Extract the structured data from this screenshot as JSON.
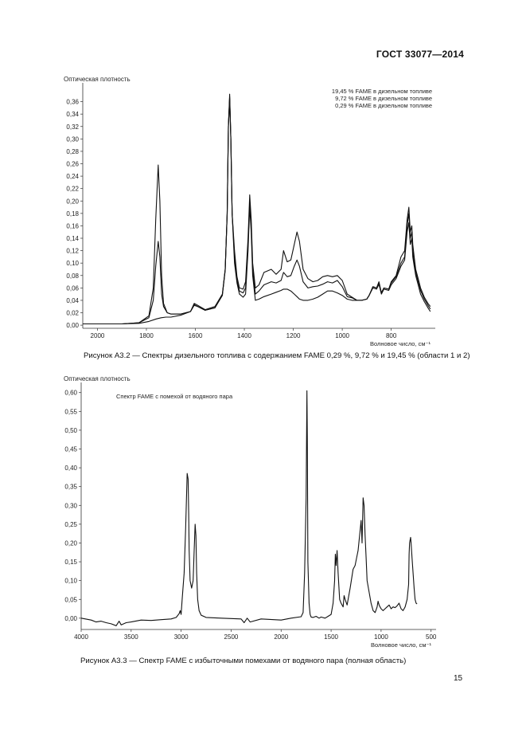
{
  "header": {
    "doc_code": "ГОСТ 33077—2014"
  },
  "page_number": "15",
  "chart_data": [
    {
      "type": "line",
      "ylabel": "Оптическая плотность",
      "xlabel": "Волновое число, см⁻¹",
      "x_reversed": true,
      "xlim": [
        2060,
        620
      ],
      "ylim": [
        -0.005,
        0.38
      ],
      "x_ticks": [
        2000,
        1800,
        1600,
        1400,
        1200,
        1000,
        800
      ],
      "y_ticks": [
        0.0,
        0.02,
        0.04,
        0.06,
        0.08,
        0.1,
        0.12,
        0.14,
        0.16,
        0.18,
        0.2,
        0.22,
        0.24,
        0.26,
        0.28,
        0.3,
        0.32,
        0.34,
        0.36
      ],
      "legend_position": "top-right",
      "series": [
        {
          "name": "19,45 % FAME в дизельном топливе",
          "x": [
            2060,
            1900,
            1830,
            1790,
            1772,
            1762,
            1752,
            1745,
            1738,
            1730,
            1715,
            1700,
            1660,
            1620,
            1605,
            1590,
            1560,
            1520,
            1490,
            1478,
            1470,
            1465,
            1460,
            1455,
            1450,
            1440,
            1430,
            1420,
            1405,
            1395,
            1385,
            1378,
            1372,
            1366,
            1355,
            1340,
            1320,
            1290,
            1270,
            1250,
            1240,
            1225,
            1210,
            1196,
            1185,
            1175,
            1160,
            1140,
            1120,
            1100,
            1080,
            1060,
            1040,
            1020,
            1000,
            980,
            960,
            940,
            920,
            900,
            890,
            875,
            860,
            850,
            840,
            830,
            810,
            800,
            780,
            760,
            745,
            735,
            728,
            722,
            716,
            712,
            706,
            700,
            690,
            680,
            665,
            650,
            640
          ],
          "y": [
            0.002,
            0.002,
            0.004,
            0.015,
            0.06,
            0.17,
            0.258,
            0.2,
            0.08,
            0.035,
            0.02,
            0.018,
            0.018,
            0.022,
            0.035,
            0.032,
            0.025,
            0.03,
            0.05,
            0.09,
            0.18,
            0.32,
            0.372,
            0.3,
            0.18,
            0.12,
            0.078,
            0.06,
            0.058,
            0.07,
            0.14,
            0.21,
            0.17,
            0.1,
            0.06,
            0.065,
            0.085,
            0.09,
            0.082,
            0.09,
            0.12,
            0.102,
            0.105,
            0.13,
            0.15,
            0.135,
            0.09,
            0.075,
            0.07,
            0.072,
            0.078,
            0.08,
            0.078,
            0.08,
            0.072,
            0.05,
            0.045,
            0.04,
            0.04,
            0.042,
            0.048,
            0.062,
            0.06,
            0.07,
            0.052,
            0.06,
            0.058,
            0.07,
            0.08,
            0.11,
            0.12,
            0.17,
            0.19,
            0.15,
            0.16,
            0.13,
            0.11,
            0.09,
            0.075,
            0.06,
            0.045,
            0.035,
            0.03
          ]
        },
        {
          "name": "9,72 % FAME в дизельном топливе",
          "x": [
            2060,
            1900,
            1830,
            1790,
            1772,
            1762,
            1752,
            1745,
            1738,
            1730,
            1715,
            1700,
            1660,
            1620,
            1605,
            1590,
            1560,
            1520,
            1490,
            1478,
            1470,
            1465,
            1460,
            1455,
            1450,
            1440,
            1430,
            1420,
            1405,
            1395,
            1385,
            1378,
            1372,
            1366,
            1355,
            1340,
            1320,
            1290,
            1270,
            1250,
            1240,
            1225,
            1210,
            1196,
            1185,
            1175,
            1160,
            1140,
            1120,
            1100,
            1080,
            1060,
            1040,
            1020,
            1000,
            980,
            960,
            940,
            920,
            900,
            890,
            875,
            860,
            850,
            840,
            830,
            810,
            800,
            780,
            760,
            745,
            735,
            728,
            722,
            716,
            712,
            706,
            700,
            690,
            680,
            665,
            650,
            640
          ],
          "y": [
            0.002,
            0.002,
            0.004,
            0.012,
            0.04,
            0.095,
            0.135,
            0.11,
            0.05,
            0.03,
            0.02,
            0.018,
            0.018,
            0.022,
            0.033,
            0.03,
            0.024,
            0.028,
            0.048,
            0.088,
            0.18,
            0.32,
            0.365,
            0.3,
            0.18,
            0.11,
            0.072,
            0.055,
            0.052,
            0.06,
            0.13,
            0.2,
            0.16,
            0.09,
            0.05,
            0.055,
            0.065,
            0.07,
            0.068,
            0.072,
            0.085,
            0.078,
            0.08,
            0.095,
            0.105,
            0.095,
            0.07,
            0.06,
            0.062,
            0.063,
            0.066,
            0.07,
            0.068,
            0.072,
            0.062,
            0.046,
            0.044,
            0.04,
            0.04,
            0.042,
            0.048,
            0.062,
            0.06,
            0.068,
            0.052,
            0.06,
            0.058,
            0.068,
            0.078,
            0.1,
            0.11,
            0.16,
            0.18,
            0.14,
            0.15,
            0.12,
            0.1,
            0.085,
            0.07,
            0.056,
            0.042,
            0.032,
            0.026
          ]
        },
        {
          "name": "0,29 % FAME в дизельном топливе",
          "x": [
            2060,
            1900,
            1830,
            1790,
            1760,
            1740,
            1720,
            1700,
            1660,
            1620,
            1605,
            1590,
            1560,
            1520,
            1490,
            1478,
            1470,
            1465,
            1460,
            1455,
            1450,
            1440,
            1430,
            1420,
            1405,
            1395,
            1385,
            1378,
            1372,
            1366,
            1355,
            1340,
            1320,
            1290,
            1270,
            1250,
            1240,
            1225,
            1210,
            1196,
            1185,
            1175,
            1160,
            1140,
            1120,
            1100,
            1080,
            1060,
            1040,
            1020,
            1000,
            980,
            960,
            940,
            920,
            900,
            890,
            875,
            860,
            850,
            840,
            830,
            810,
            800,
            780,
            760,
            745,
            735,
            728,
            722,
            716,
            712,
            706,
            700,
            690,
            680,
            665,
            650,
            640
          ],
          "y": [
            0.002,
            0.002,
            0.003,
            0.006,
            0.01,
            0.012,
            0.013,
            0.013,
            0.016,
            0.022,
            0.032,
            0.03,
            0.024,
            0.028,
            0.048,
            0.09,
            0.18,
            0.32,
            0.368,
            0.3,
            0.18,
            0.1,
            0.068,
            0.05,
            0.045,
            0.05,
            0.12,
            0.19,
            0.15,
            0.08,
            0.04,
            0.042,
            0.046,
            0.05,
            0.053,
            0.056,
            0.058,
            0.058,
            0.055,
            0.05,
            0.046,
            0.042,
            0.04,
            0.04,
            0.042,
            0.045,
            0.05,
            0.055,
            0.055,
            0.052,
            0.048,
            0.042,
            0.04,
            0.04,
            0.04,
            0.042,
            0.048,
            0.06,
            0.058,
            0.066,
            0.05,
            0.058,
            0.056,
            0.065,
            0.075,
            0.095,
            0.105,
            0.15,
            0.165,
            0.13,
            0.14,
            0.11,
            0.095,
            0.08,
            0.065,
            0.05,
            0.038,
            0.028,
            0.022
          ]
        }
      ]
    },
    {
      "type": "line",
      "ylabel": "Оптическая плотность",
      "xlabel": "Волновое число, см⁻¹",
      "x_reversed": true,
      "xlim": [
        4000,
        450
      ],
      "ylim": [
        -0.03,
        0.61
      ],
      "x_ticks": [
        4000,
        3500,
        3000,
        2500,
        2000,
        1500,
        1000,
        500
      ],
      "y_ticks": [
        0.0,
        0.05,
        0.1,
        0.15,
        0.2,
        0.25,
        0.3,
        0.35,
        0.4,
        0.45,
        0.5,
        0.55,
        0.6
      ],
      "legend_position": "top-left",
      "series": [
        {
          "name": "Спектр FAME с помехой от водяного пара",
          "x": [
            4000,
            3900,
            3850,
            3800,
            3750,
            3700,
            3650,
            3620,
            3600,
            3550,
            3500,
            3400,
            3300,
            3200,
            3100,
            3050,
            3020,
            3010,
            3000,
            2990,
            2970,
            2955,
            2940,
            2930,
            2925,
            2920,
            2910,
            2895,
            2880,
            2870,
            2860,
            2852,
            2845,
            2835,
            2820,
            2800,
            2750,
            2600,
            2400,
            2370,
            2340,
            2310,
            2200,
            2000,
            1900,
            1800,
            1780,
            1765,
            1750,
            1742,
            1738,
            1732,
            1720,
            1710,
            1700,
            1680,
            1650,
            1620,
            1600,
            1560,
            1530,
            1500,
            1480,
            1465,
            1458,
            1450,
            1440,
            1430,
            1415,
            1400,
            1380,
            1370,
            1360,
            1340,
            1310,
            1280,
            1260,
            1245,
            1230,
            1215,
            1200,
            1190,
            1180,
            1170,
            1160,
            1150,
            1140,
            1120,
            1100,
            1080,
            1060,
            1040,
            1030,
            1020,
            1010,
            1000,
            980,
            960,
            940,
            920,
            900,
            880,
            860,
            840,
            820,
            800,
            780,
            760,
            740,
            725,
            720,
            715,
            705,
            700,
            690,
            680,
            670,
            660,
            650,
            640
          ],
          "y": [
            0.0,
            -0.005,
            -0.01,
            -0.008,
            -0.012,
            -0.015,
            -0.02,
            -0.008,
            -0.018,
            -0.012,
            -0.01,
            -0.005,
            -0.006,
            -0.004,
            -0.002,
            0.002,
            0.012,
            0.02,
            0.01,
            0.05,
            0.12,
            0.24,
            0.385,
            0.37,
            0.28,
            0.18,
            0.1,
            0.08,
            0.1,
            0.18,
            0.25,
            0.22,
            0.12,
            0.05,
            0.02,
            0.008,
            0.002,
            0.0,
            -0.002,
            -0.012,
            0.0,
            -0.01,
            -0.002,
            -0.005,
            0.0,
            0.004,
            0.015,
            0.12,
            0.32,
            0.605,
            0.48,
            0.15,
            0.04,
            0.01,
            0.003,
            0.002,
            0.005,
            0.0,
            0.003,
            0.0,
            0.005,
            0.01,
            0.04,
            0.1,
            0.17,
            0.14,
            0.18,
            0.12,
            0.05,
            0.04,
            0.03,
            0.06,
            0.05,
            0.035,
            0.08,
            0.13,
            0.14,
            0.16,
            0.18,
            0.22,
            0.26,
            0.2,
            0.32,
            0.3,
            0.22,
            0.16,
            0.1,
            0.07,
            0.04,
            0.02,
            0.015,
            0.03,
            0.045,
            0.035,
            0.03,
            0.025,
            0.02,
            0.025,
            0.03,
            0.035,
            0.025,
            0.03,
            0.028,
            0.033,
            0.04,
            0.025,
            0.02,
            0.03,
            0.05,
            0.09,
            0.17,
            0.2,
            0.215,
            0.2,
            0.16,
            0.12,
            0.08,
            0.05,
            0.04,
            0.038
          ]
        }
      ]
    }
  ],
  "captions": {
    "fig_a32": "Рисунок А3.2 — Спектры дизельного топлива с содержанием FAME 0,29 %, 9,72 % и 19,45 % (области 1 и 2)",
    "fig_a33": "Рисунок А3.3 — Спектр FAME с избыточными помехами от водяного пара (полная область)"
  },
  "colors": {
    "line": "#111111",
    "axis": "#333333"
  }
}
